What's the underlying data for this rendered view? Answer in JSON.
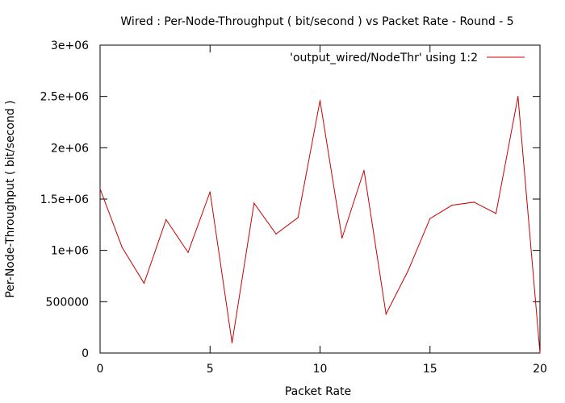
{
  "chart_data": {
    "type": "line",
    "title": "Wired : Per-Node-Throughput ( bit/second ) vs Packet Rate - Round - 5",
    "xlabel": "Packet Rate",
    "ylabel": "Per-Node-Throughput ( bit/second )",
    "xlim": [
      0,
      20
    ],
    "ylim": [
      0,
      3000000
    ],
    "x_ticks": [
      0,
      5,
      10,
      15,
      20
    ],
    "x_tick_labels": [
      "0",
      "5",
      "10",
      "15",
      "20"
    ],
    "y_ticks": [
      0,
      500000,
      1000000,
      1500000,
      2000000,
      2500000,
      3000000
    ],
    "y_tick_labels": [
      "0",
      "500000",
      "1e+06",
      "1.5e+06",
      "2e+06",
      "2.5e+06",
      "3e+06"
    ],
    "grid": false,
    "legend_position": "top-right",
    "series": [
      {
        "name": "'output_wired/NodeThr' using 1:2",
        "color": "#cc0000",
        "x": [
          0,
          1,
          2,
          3,
          4,
          5,
          6,
          7,
          8,
          9,
          10,
          11,
          12,
          13,
          14,
          15,
          16,
          17,
          18,
          19,
          20
        ],
        "values": [
          1600000,
          1030000,
          680000,
          1300000,
          980000,
          1570000,
          100000,
          1460000,
          1160000,
          1320000,
          2460000,
          1120000,
          1780000,
          380000,
          800000,
          1310000,
          1440000,
          1470000,
          1360000,
          2500000,
          0
        ]
      }
    ]
  }
}
